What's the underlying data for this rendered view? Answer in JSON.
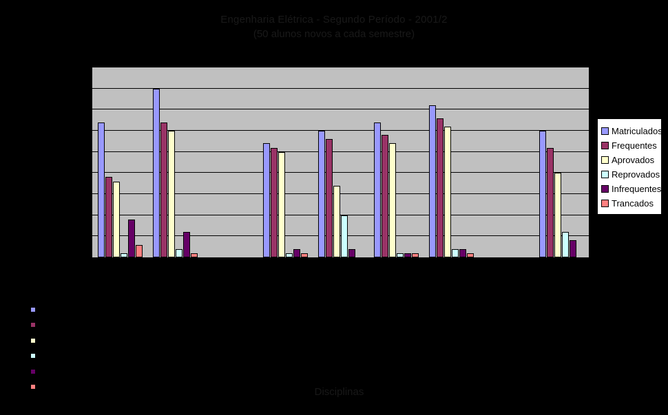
{
  "note": "Excel-style clustered bar chart on black background; x-axis category labels and y-axis tick numbers are rendered black-on-black and are not legible in the screenshot.",
  "colors": {
    "background": "#000000",
    "plot_fill": "#C0C0C0",
    "gridline": "#000000",
    "legend_fill": "#FFFFFF",
    "faint_text": "#191919"
  },
  "chart_data": {
    "type": "bar",
    "title": "Engenharia Elétrica - Segundo Período - 2001/2",
    "subtitle": "(50 alunos novos a cada semestre)",
    "xlabel": "Disciplinas",
    "ylabel": "",
    "ylim": [
      0,
      45
    ],
    "ytick_step": 5,
    "grid": true,
    "legend_position": "right",
    "categories": [
      "",
      "",
      "",
      "",
      "",
      "",
      "",
      "",
      ""
    ],
    "series": [
      {
        "name": "Matriculados",
        "color": "#9999FF",
        "values": [
          32,
          40,
          0,
          27,
          30,
          32,
          36,
          0,
          30
        ]
      },
      {
        "name": "Frequentes",
        "color": "#993366",
        "values": [
          19,
          32,
          0,
          26,
          28,
          29,
          33,
          0,
          26
        ]
      },
      {
        "name": "Aprovados",
        "color": "#FFFFCC",
        "values": [
          18,
          30,
          0,
          25,
          17,
          27,
          31,
          0,
          20
        ]
      },
      {
        "name": "Reprovados",
        "color": "#CCFFFF",
        "values": [
          1,
          2,
          0,
          1,
          10,
          1,
          2,
          0,
          6
        ]
      },
      {
        "name": "Infrequentes",
        "color": "#660066",
        "values": [
          9,
          6,
          0,
          2,
          2,
          1,
          2,
          0,
          4
        ]
      },
      {
        "name": "Trancados",
        "color": "#FF8080",
        "values": [
          3,
          1,
          0,
          1,
          0,
          1,
          1,
          0,
          0
        ]
      }
    ]
  }
}
